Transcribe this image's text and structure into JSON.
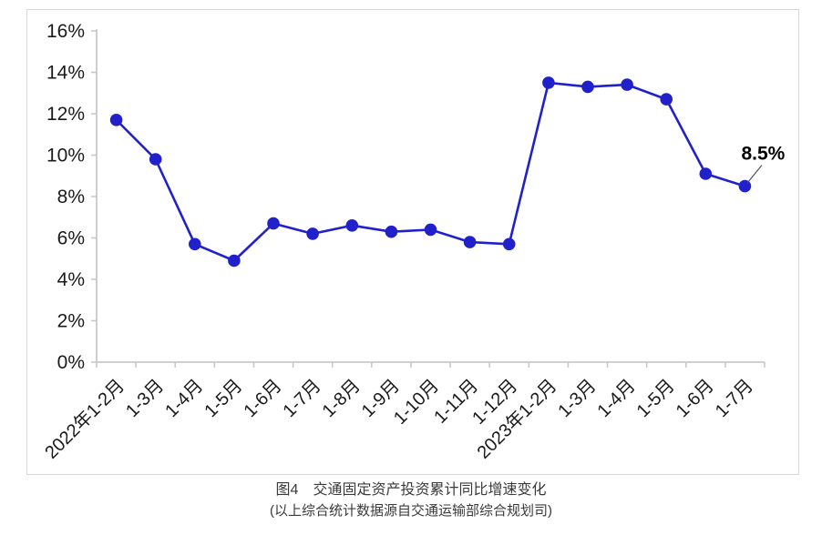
{
  "figure": {
    "caption_line1": "图4　交通固定资产投资累计同比增速变化",
    "caption_line2": "(以上综合统计数据源自交通运输部综合规划司)"
  },
  "chart_data": {
    "type": "line",
    "title": "图4 交通固定资产投资累计同比增速变化",
    "source_note": "(以上综合统计数据源自交通运输部综合规划司)",
    "categories": [
      "2022年1-2月",
      "1-3月",
      "1-4月",
      "1-5月",
      "1-6月",
      "1-7月",
      "1-8月",
      "1-9月",
      "1-10月",
      "1-11月",
      "1-12月",
      "2023年1-2月",
      "1-3月",
      "1-4月",
      "1-5月",
      "1-6月",
      "1-7月"
    ],
    "series": [
      {
        "name": "交通固定资产投资累计同比增速",
        "values": [
          11.7,
          9.8,
          5.7,
          4.9,
          6.7,
          6.2,
          6.6,
          6.3,
          6.4,
          5.8,
          5.7,
          13.5,
          13.3,
          13.4,
          12.7,
          9.1,
          8.5
        ]
      }
    ],
    "xlabel": "",
    "ylabel": "",
    "ylim": [
      0,
      16
    ],
    "yticks": [
      0,
      2,
      4,
      6,
      8,
      10,
      12,
      14,
      16
    ],
    "ytick_suffix": "%",
    "grid": false,
    "legend_position": "none",
    "annotation": {
      "text": "8.5%",
      "series": 0,
      "index": 16
    },
    "colors": {
      "line": "#2121cc",
      "marker": "#2121cc",
      "axis": "#c9c9c9",
      "tick": "#c9c9c9",
      "label": "#1a1a1a",
      "annotation_text": "#000000",
      "annotation_leader": "#555555"
    }
  }
}
